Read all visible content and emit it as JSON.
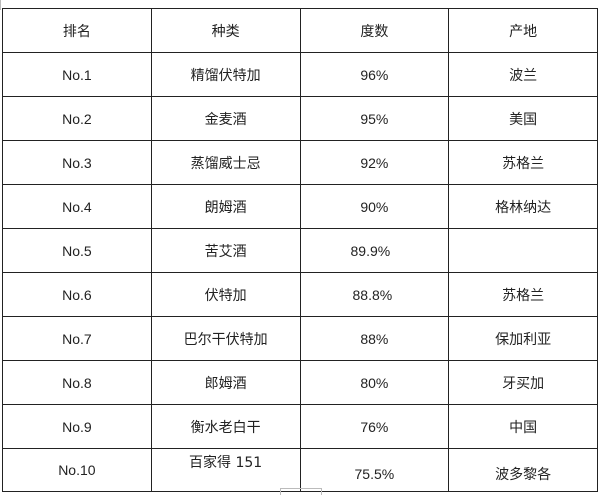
{
  "table": {
    "headers": [
      "排名",
      "种类",
      "度数",
      "产地"
    ],
    "rows": [
      [
        "No.1",
        "精馏伏特加",
        "96%",
        "波兰"
      ],
      [
        "No.2",
        "金麦酒",
        "95%",
        "美国"
      ],
      [
        "No.3",
        "蒸馏威士忌",
        "92%",
        "苏格兰"
      ],
      [
        "No.4",
        "朗姆酒",
        "90%",
        "格林纳达"
      ],
      [
        "No.5",
        "苦艾酒",
        "89.9%",
        ""
      ],
      [
        "No.6",
        "伏特加",
        "88.8%",
        "苏格兰"
      ],
      [
        "No.7",
        "巴尔干伏特加",
        "88%",
        "保加利亚"
      ],
      [
        "No.8",
        "郎姆酒",
        "80%",
        "牙买加"
      ],
      [
        "No.9",
        "衡水老白干",
        "76%",
        "中国"
      ],
      [
        "No.10",
        "百家得 151",
        "75.5%",
        "波多黎各"
      ]
    ]
  }
}
